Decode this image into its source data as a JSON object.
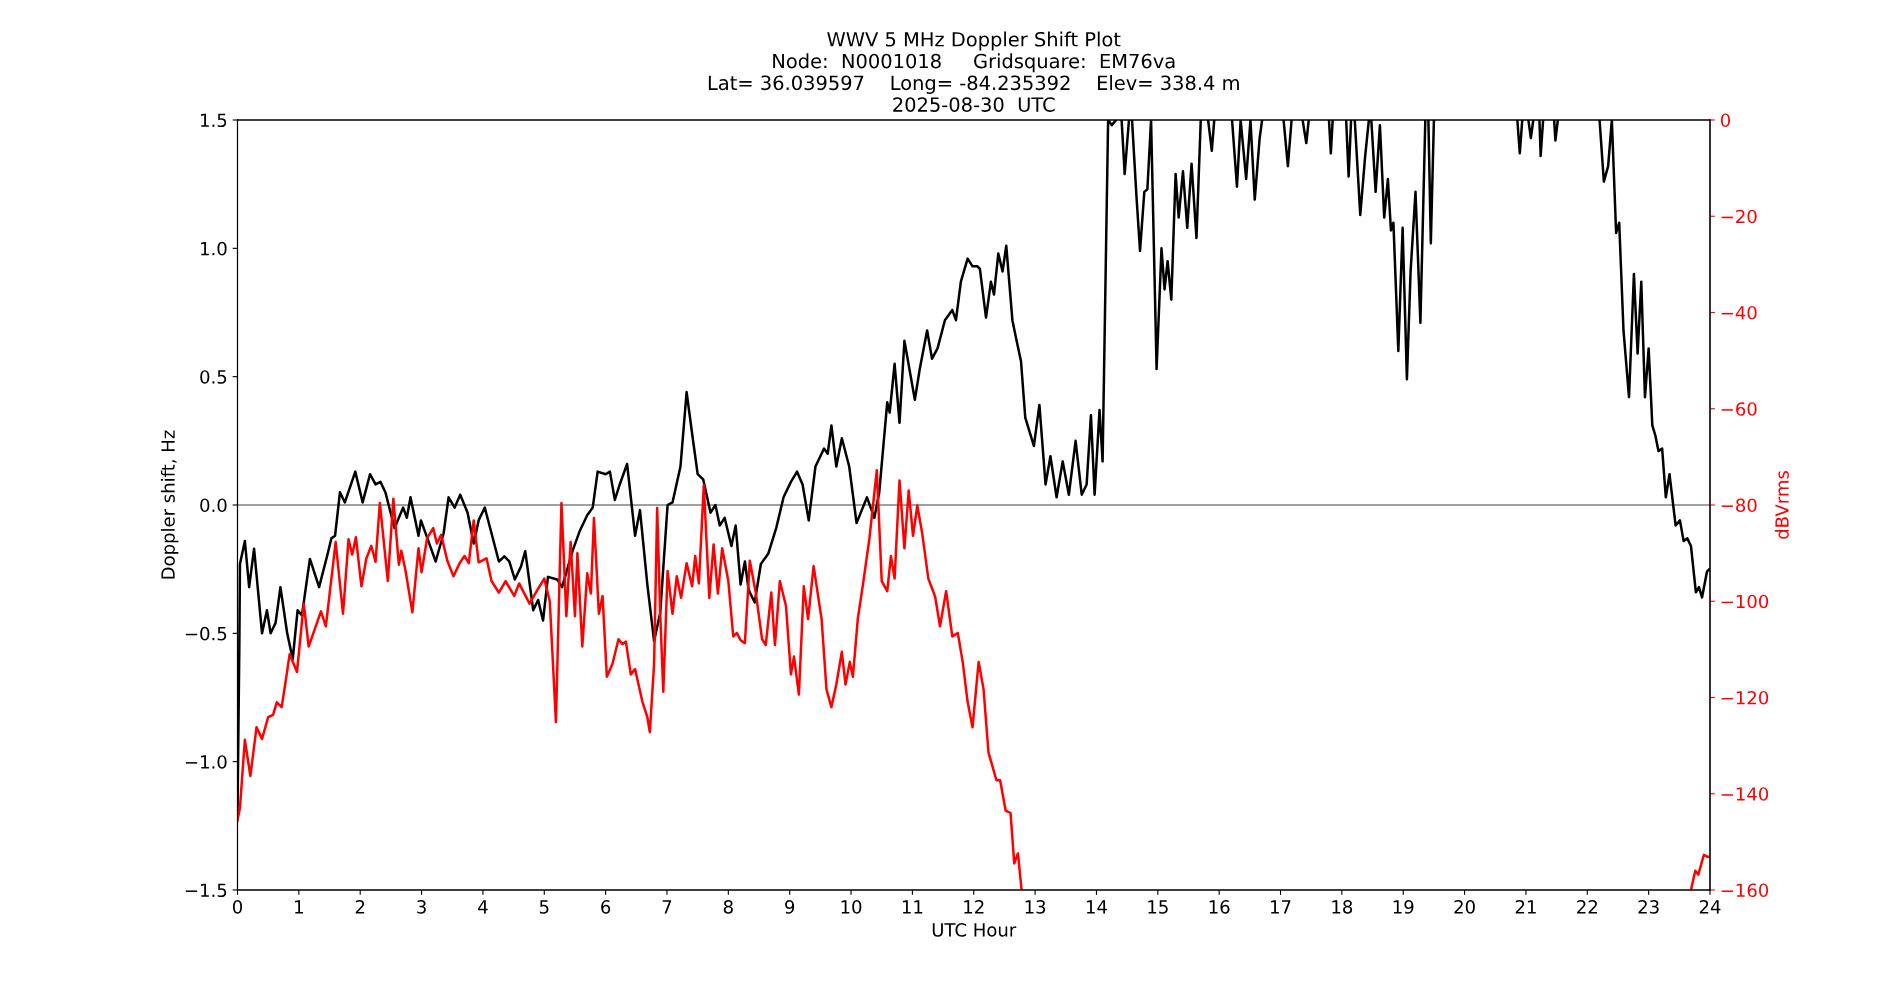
{
  "chart_data": {
    "type": "line",
    "title": "WWV 5 MHz Doppler Shift Plot\nNode:  N0001018     Gridsquare:  EM76va\nLat= 36.039597    Long= -84.235392    Elev= 338.4 m\n2025-08-30  UTC",
    "xlabel": "UTC Hour",
    "ylabel": "Doppler shift, Hz",
    "y2label": "dBVrms",
    "xlim": [
      0,
      24
    ],
    "xticks": [
      0,
      1,
      2,
      3,
      4,
      5,
      6,
      7,
      8,
      9,
      10,
      11,
      12,
      13,
      14,
      15,
      16,
      17,
      18,
      19,
      20,
      21,
      22,
      23,
      24
    ],
    "ylim": [
      -1.5,
      1.5
    ],
    "yticks": [
      {
        "value": -1.5,
        "label": "−1.5"
      },
      {
        "value": -1.0,
        "label": "−1.0"
      },
      {
        "value": -0.5,
        "label": "−0.5"
      },
      {
        "value": 0,
        "label": "0.0"
      },
      {
        "value": 0.5,
        "label": "0.5"
      },
      {
        "value": 1.0,
        "label": "1.0"
      },
      {
        "value": 1.5,
        "label": "1.5"
      }
    ],
    "y2lim": [
      -160,
      0
    ],
    "y2ticks": [
      {
        "value": -160,
        "label": "−160"
      },
      {
        "value": -140,
        "label": "−140"
      },
      {
        "value": -120,
        "label": "−120"
      },
      {
        "value": -100,
        "label": "−100"
      },
      {
        "value": -80,
        "label": "−80"
      },
      {
        "value": -60,
        "label": "−60"
      },
      {
        "value": -40,
        "label": "−40"
      },
      {
        "value": -20,
        "label": "−20"
      },
      0
    ],
    "marker": "none",
    "line_style": "solid",
    "ref_lines": [
      {
        "axis": "y",
        "value": 0,
        "color": "#808080",
        "line_style": "solid"
      }
    ],
    "series": [
      {
        "color": "#000000",
        "axis": "y",
        "x": [
          0,
          0.03,
          0.04,
          0.12,
          0.19,
          0.27,
          0.4,
          0.48,
          0.54,
          0.62,
          0.7,
          0.81,
          0.9,
          0.98,
          1.05,
          1.18,
          1.33,
          1.47,
          1.53,
          1.59,
          1.67,
          1.75,
          1.92,
          2.04,
          2.16,
          2.25,
          2.33,
          2.41,
          2.56,
          2.7,
          2.76,
          2.82,
          2.95,
          2.99,
          3.11,
          3.23,
          3.36,
          3.44,
          3.54,
          3.63,
          3.75,
          3.85,
          3.93,
          4.03,
          4.14,
          4.26,
          4.35,
          4.43,
          4.52,
          4.62,
          4.69,
          4.82,
          4.9,
          4.98,
          5.06,
          5.21,
          5.29,
          5.46,
          5.58,
          5.7,
          5.79,
          5.87,
          6.0,
          6.07,
          6.15,
          6.23,
          6.35,
          6.48,
          6.56,
          6.68,
          6.79,
          6.89,
          7.01,
          7.09,
          7.22,
          7.32,
          7.42,
          7.5,
          7.59,
          7.71,
          7.79,
          7.86,
          7.94,
          8.05,
          8.12,
          8.2,
          8.27,
          8.33,
          8.43,
          8.53,
          8.65,
          8.78,
          8.9,
          9.02,
          9.12,
          9.21,
          9.31,
          9.42,
          9.56,
          9.62,
          9.68,
          9.76,
          9.85,
          9.97,
          10.09,
          10.26,
          10.38,
          10.46,
          10.59,
          10.63,
          10.71,
          10.79,
          10.87,
          11.04,
          11.12,
          11.24,
          11.32,
          11.41,
          11.53,
          11.65,
          11.71,
          11.79,
          11.9,
          11.98,
          12.06,
          12.1,
          12.2,
          12.28,
          12.33,
          12.4,
          12.47,
          12.53,
          12.63,
          12.69,
          12.77,
          12.84,
          12.98,
          13.07,
          13.17,
          13.25,
          13.35,
          13.45,
          13.55,
          13.66,
          13.76,
          13.84,
          13.91,
          13.97,
          14.05,
          14.1,
          14.19,
          14.25,
          14.32,
          14.36,
          14.41,
          14.46,
          14.53,
          14.55,
          14.58,
          14.65,
          14.71,
          14.78,
          14.83,
          14.89,
          14.98,
          15.06,
          15.11,
          15.16,
          15.22,
          15.29,
          15.34,
          15.41,
          15.48,
          15.55,
          15.63,
          15.7,
          15.76,
          15.82,
          15.88,
          15.92,
          16.0,
          16.21,
          16.29,
          16.35,
          16.44,
          16.51,
          16.58,
          16.66,
          16.7,
          16.9,
          17.05,
          17.12,
          17.18,
          17.27,
          17.36,
          17.42,
          17.46,
          17.6,
          17.79,
          17.82,
          17.85,
          17.95,
          18.07,
          18.11,
          18.15,
          18.18,
          18.21,
          18.3,
          18.38,
          18.44,
          18.46,
          18.48,
          18.55,
          18.62,
          18.69,
          18.75,
          18.8,
          18.84,
          18.92,
          18.99,
          19.06,
          19.12,
          19.2,
          19.28,
          19.36,
          19.38,
          19.41,
          19.45,
          19.5,
          20.0,
          20.86,
          20.9,
          20.94,
          21.0,
          21.04,
          21.08,
          21.12,
          21.17,
          21.22,
          21.24,
          21.28,
          21.37,
          21.46,
          21.48,
          21.52,
          21.9,
          22.2,
          22.27,
          22.34,
          22.4,
          22.47,
          22.52,
          22.59,
          22.68,
          22.76,
          22.82,
          22.88,
          22.94,
          23.0,
          23.06,
          23.11,
          23.16,
          23.22,
          23.28,
          23.34,
          23.44,
          23.51,
          23.57,
          23.63,
          23.69,
          23.77,
          23.82,
          23.87,
          23.95,
          23.99
        ],
        "values": [
          -1.2,
          -0.55,
          -0.23,
          -0.14,
          -0.32,
          -0.17,
          -0.5,
          -0.41,
          -0.5,
          -0.46,
          -0.32,
          -0.5,
          -0.6,
          -0.41,
          -0.43,
          -0.21,
          -0.32,
          -0.19,
          -0.13,
          -0.12,
          0.05,
          0.01,
          0.13,
          0.01,
          0.12,
          0.08,
          0.09,
          0.05,
          -0.09,
          -0.01,
          -0.05,
          0.03,
          -0.12,
          -0.06,
          -0.14,
          -0.22,
          -0.11,
          0.03,
          -0.01,
          0.04,
          -0.03,
          -0.15,
          -0.06,
          -0.01,
          -0.11,
          -0.22,
          -0.2,
          -0.22,
          -0.29,
          -0.24,
          -0.18,
          -0.41,
          -0.37,
          -0.45,
          -0.28,
          -0.29,
          -0.32,
          -0.18,
          -0.1,
          -0.04,
          -0.01,
          0.13,
          0.12,
          0.13,
          0.02,
          0.08,
          0.16,
          -0.12,
          -0.02,
          -0.31,
          -0.53,
          -0.42,
          0.0,
          0.01,
          0.15,
          0.44,
          0.26,
          0.12,
          0.1,
          -0.03,
          0.0,
          -0.08,
          -0.05,
          -0.16,
          -0.08,
          -0.31,
          -0.22,
          -0.33,
          -0.38,
          -0.23,
          -0.19,
          -0.09,
          0.03,
          0.09,
          0.13,
          0.08,
          -0.06,
          0.15,
          0.22,
          0.2,
          0.31,
          0.15,
          0.26,
          0.15,
          -0.07,
          0.03,
          -0.05,
          0.05,
          0.4,
          0.36,
          0.55,
          0.32,
          0.64,
          0.41,
          0.53,
          0.68,
          0.57,
          0.61,
          0.72,
          0.76,
          0.72,
          0.87,
          0.96,
          0.93,
          0.93,
          0.92,
          0.73,
          0.87,
          0.82,
          0.98,
          0.91,
          1.01,
          0.72,
          0.65,
          0.56,
          0.34,
          0.23,
          0.39,
          0.08,
          0.19,
          0.03,
          0.17,
          0.04,
          0.25,
          0.04,
          0.08,
          0.35,
          0.04,
          0.37,
          0.17,
          1.5,
          1.48,
          1.5,
          null,
          1.5,
          1.29,
          1.5,
          null,
          1.5,
          1.21,
          0.99,
          1.22,
          1.23,
          1.5,
          0.53,
          1.0,
          0.84,
          0.95,
          0.8,
          1.29,
          1.12,
          1.3,
          1.08,
          1.33,
          1.04,
          1.5,
          null,
          1.5,
          1.38,
          1.5,
          null,
          1.5,
          1.24,
          1.5,
          1.27,
          1.5,
          1.19,
          1.43,
          1.5,
          null,
          1.5,
          1.32,
          1.5,
          null,
          1.5,
          1.41,
          1.5,
          null,
          1.5,
          1.37,
          1.5,
          null,
          1.5,
          1.28,
          1.5,
          null,
          1.5,
          1.13,
          1.36,
          1.5,
          null,
          1.5,
          1.22,
          1.48,
          1.12,
          1.27,
          1.07,
          1.1,
          0.6,
          1.08,
          0.49,
          0.91,
          1.22,
          0.71,
          1.5,
          null,
          1.5,
          1.02,
          1.5,
          null,
          1.5,
          1.37,
          1.5,
          null,
          1.5,
          1.43,
          1.5,
          null,
          1.5,
          1.36,
          1.5,
          null,
          1.5,
          1.42,
          1.5,
          null,
          1.5,
          1.26,
          1.32,
          1.5,
          1.06,
          1.1,
          0.68,
          0.42,
          0.9,
          0.59,
          0.87,
          0.42,
          0.61,
          0.31,
          0.27,
          0.21,
          0.22,
          0.03,
          0.12,
          -0.08,
          -0.06,
          -0.14,
          -0.13,
          -0.16,
          -0.34,
          -0.32,
          -0.36,
          -0.26,
          -0.25
        ]
      },
      {
        "color": "#ff0000",
        "axis": "y2",
        "x": [
          0,
          0.04,
          0.12,
          0.21,
          0.31,
          0.4,
          0.5,
          0.58,
          0.64,
          0.72,
          0.79,
          0.85,
          0.97,
          1.08,
          1.16,
          1.26,
          1.36,
          1.44,
          1.6,
          1.72,
          1.81,
          1.87,
          1.93,
          2.02,
          2.1,
          2.18,
          2.25,
          2.32,
          2.45,
          2.54,
          2.63,
          2.67,
          2.74,
          2.85,
          2.95,
          3.0,
          3.09,
          3.19,
          3.25,
          3.32,
          3.42,
          3.52,
          3.62,
          3.7,
          3.77,
          3.85,
          3.93,
          4.06,
          4.14,
          4.26,
          4.37,
          4.51,
          4.59,
          4.76,
          4.9,
          5.0,
          5.09,
          5.19,
          5.28,
          5.36,
          5.43,
          5.5,
          5.54,
          5.62,
          5.7,
          5.76,
          5.81,
          5.89,
          5.95,
          6.02,
          6.11,
          6.21,
          6.27,
          6.33,
          6.41,
          6.48,
          6.6,
          6.68,
          6.72,
          6.79,
          6.84,
          6.89,
          6.94,
          7.01,
          7.09,
          7.16,
          7.23,
          7.32,
          7.41,
          7.46,
          7.52,
          7.6,
          7.69,
          7.76,
          7.83,
          7.9,
          8.0,
          8.08,
          8.14,
          8.2,
          8.27,
          8.35,
          8.45,
          8.55,
          8.61,
          8.7,
          8.76,
          8.84,
          8.94,
          9.02,
          9.07,
          9.15,
          9.23,
          9.3,
          9.39,
          9.52,
          9.6,
          9.68,
          9.76,
          9.85,
          9.91,
          9.98,
          10.03,
          10.11,
          10.19,
          10.3,
          10.42,
          10.5,
          10.59,
          10.65,
          10.71,
          10.79,
          10.87,
          10.94,
          11.01,
          11.08,
          11.16,
          11.26,
          11.37,
          11.45,
          11.55,
          11.65,
          11.74,
          11.82,
          11.9,
          11.98,
          12.08,
          12.16,
          12.24,
          12.37,
          12.43,
          12.52,
          12.6,
          12.66,
          12.72,
          12.78,
          18.0,
          23.69,
          23.76,
          23.81,
          23.9,
          23.96,
          24.0
        ],
        "values": [
          -145.5,
          -142.9,
          -128.8,
          -136.3,
          -126.2,
          -128.6,
          -124.1,
          -123.6,
          -121.0,
          -122.0,
          -116.2,
          -111.0,
          -114.7,
          -100.5,
          -109.4,
          -105.8,
          -102.1,
          -105.2,
          -87.7,
          -102.6,
          -87.1,
          -90.3,
          -86.7,
          -96.9,
          -91.1,
          -88.5,
          -91.8,
          -79.6,
          -95.8,
          -78.7,
          -92.4,
          -89.5,
          -93.7,
          -102.3,
          -89.0,
          -94.0,
          -86.9,
          -84.8,
          -88.0,
          -86.2,
          -91.6,
          -94.8,
          -92.1,
          -90.6,
          -92.1,
          -83.2,
          -91.9,
          -91.1,
          -95.8,
          -98.2,
          -95.8,
          -98.9,
          -96.3,
          -100.5,
          -97.4,
          -95.3,
          -100.0,
          -125.1,
          -79.6,
          -103.1,
          -87.7,
          -103.1,
          -90.0,
          -109.4,
          -94.2,
          -98.4,
          -82.7,
          -102.6,
          -98.9,
          -115.7,
          -113.1,
          -107.9,
          -108.9,
          -108.4,
          -115.2,
          -114.1,
          -120.9,
          -124.1,
          -127.2,
          -113.1,
          -80.6,
          -102.6,
          -118.8,
          -93.7,
          -102.6,
          -94.8,
          -99.3,
          -92.1,
          -96.9,
          -90.6,
          -96.3,
          -75.9,
          -99.3,
          -88.2,
          -98.4,
          -89.0,
          -95.8,
          -107.3,
          -106.6,
          -108.1,
          -108.7,
          -91.6,
          -98.4,
          -107.9,
          -109.1,
          -98.2,
          -109.1,
          -95.8,
          -101.0,
          -115.2,
          -111.5,
          -119.4,
          -96.9,
          -103.7,
          -92.7,
          -103.7,
          -118.3,
          -122.0,
          -117.3,
          -110.5,
          -117.3,
          -112.6,
          -115.7,
          -103.7,
          -96.9,
          -86.9,
          -72.8,
          -95.8,
          -97.9,
          -90.6,
          -95.3,
          -74.9,
          -89.0,
          -77.0,
          -86.4,
          -80.1,
          -85.9,
          -95.3,
          -99.0,
          -105.2,
          -97.9,
          -107.3,
          -106.6,
          -112.6,
          -120.9,
          -126.2,
          -112.6,
          -118.3,
          -131.4,
          -137.2,
          -137.2,
          -143.5,
          -144.0,
          -154.5,
          -152.4,
          -160,
          null,
          -160,
          -156.0,
          -156.8,
          -152.7,
          -153.1,
          -153.1
        ]
      }
    ]
  }
}
